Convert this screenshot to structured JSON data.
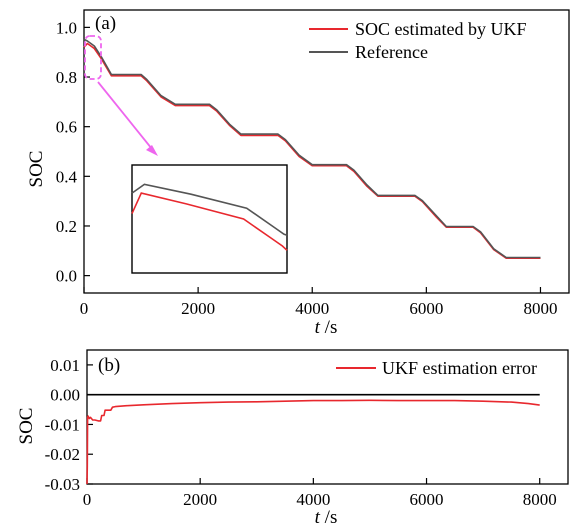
{
  "chart_data": [
    {
      "panel_label": "(a)",
      "type": "line",
      "xlabel_italic": "t",
      "xlabel_unit": " /s",
      "ylabel": "SOC",
      "xlim": [
        0,
        8500
      ],
      "ylim": [
        -0.07,
        1.07
      ],
      "xticks": [
        "0",
        "2000",
        "4000",
        "6000",
        "8000"
      ],
      "yticks": [
        "0.0",
        "0.2",
        "0.4",
        "0.6",
        "0.8",
        "1.0"
      ],
      "legend_position": "top-right",
      "series": [
        {
          "name": "SOC estimated by UKF",
          "color": "#e8282e",
          "x": [
            0,
            60,
            180,
            300,
            480,
            1000,
            1100,
            1350,
            1600,
            2200,
            2330,
            2550,
            2750,
            3400,
            3530,
            3770,
            4000,
            4600,
            4730,
            4960,
            5150,
            5800,
            5930,
            6180,
            6350,
            6820,
            6950,
            7180,
            7400,
            8000
          ],
          "values": [
            0.92,
            0.935,
            0.915,
            0.875,
            0.805,
            0.805,
            0.785,
            0.72,
            0.685,
            0.685,
            0.662,
            0.605,
            0.565,
            0.565,
            0.543,
            0.48,
            0.443,
            0.443,
            0.42,
            0.36,
            0.32,
            0.32,
            0.298,
            0.235,
            0.195,
            0.195,
            0.172,
            0.105,
            0.07,
            0.07
          ]
        },
        {
          "name": "Reference",
          "color": "#555555",
          "x": [
            0,
            60,
            180,
            300,
            480,
            1000,
            1100,
            1350,
            1600,
            2200,
            2330,
            2550,
            2750,
            3400,
            3530,
            3770,
            4000,
            4600,
            4730,
            4960,
            5150,
            5800,
            5930,
            6180,
            6350,
            6820,
            6950,
            7180,
            7400,
            8000
          ],
          "values": [
            0.952,
            0.945,
            0.925,
            0.883,
            0.81,
            0.81,
            0.79,
            0.725,
            0.69,
            0.69,
            0.667,
            0.61,
            0.57,
            0.57,
            0.548,
            0.485,
            0.447,
            0.447,
            0.425,
            0.365,
            0.323,
            0.323,
            0.302,
            0.24,
            0.198,
            0.198,
            0.176,
            0.108,
            0.073,
            0.073
          ]
        }
      ],
      "inset": {
        "series": [
          {
            "color": "#e8282e",
            "points": [
              [
                0.0,
                0.55
              ],
              [
                0.06,
                0.74
              ],
              [
                0.35,
                0.64
              ],
              [
                0.72,
                0.5
              ],
              [
                0.9,
                0.32
              ],
              [
                0.97,
                0.25
              ],
              [
                1.0,
                0.21
              ]
            ]
          },
          {
            "color": "#555555",
            "points": [
              [
                0.0,
                0.74
              ],
              [
                0.08,
                0.82
              ],
              [
                0.38,
                0.73
              ],
              [
                0.74,
                0.6
              ],
              [
                0.92,
                0.42
              ],
              [
                0.98,
                0.36
              ],
              [
                1.0,
                0.35
              ]
            ]
          }
        ]
      }
    },
    {
      "panel_label": "(b)",
      "type": "line",
      "xlabel_italic": "t",
      "xlabel_unit": " /s",
      "ylabel": "SOC",
      "xlim": [
        0,
        8500
      ],
      "ylim": [
        -0.03,
        0.015
      ],
      "xticks": [
        "0",
        "2000",
        "4000",
        "6000",
        "8000"
      ],
      "yticks": [
        "0.01",
        "0.00",
        "-0.01",
        "-0.02",
        "-0.03"
      ],
      "legend_position": "top-right",
      "series": [
        {
          "name": "UKF estimation error",
          "color": "#e8282e",
          "x": [
            0,
            5,
            10,
            20,
            40,
            60,
            100,
            140,
            200,
            240,
            260,
            300,
            320,
            420,
            450,
            500,
            700,
            1000,
            1500,
            2000,
            2500,
            3000,
            3500,
            4000,
            4500,
            5000,
            5500,
            6000,
            6500,
            7000,
            7500,
            7800,
            8000
          ],
          "values": [
            -0.03,
            -0.024,
            -0.0075,
            -0.0072,
            -0.008,
            -0.0076,
            -0.0085,
            -0.0085,
            -0.0088,
            -0.0088,
            -0.007,
            -0.007,
            -0.0052,
            -0.0052,
            -0.0042,
            -0.004,
            -0.0037,
            -0.0034,
            -0.003,
            -0.0027,
            -0.0025,
            -0.0024,
            -0.0022,
            -0.002,
            -0.002,
            -0.0019,
            -0.002,
            -0.002,
            -0.002,
            -0.0022,
            -0.0025,
            -0.003,
            -0.0035
          ]
        }
      ],
      "reference_line": {
        "y": 0.0,
        "x": [
          0,
          8000
        ],
        "color": "#000000"
      }
    }
  ]
}
